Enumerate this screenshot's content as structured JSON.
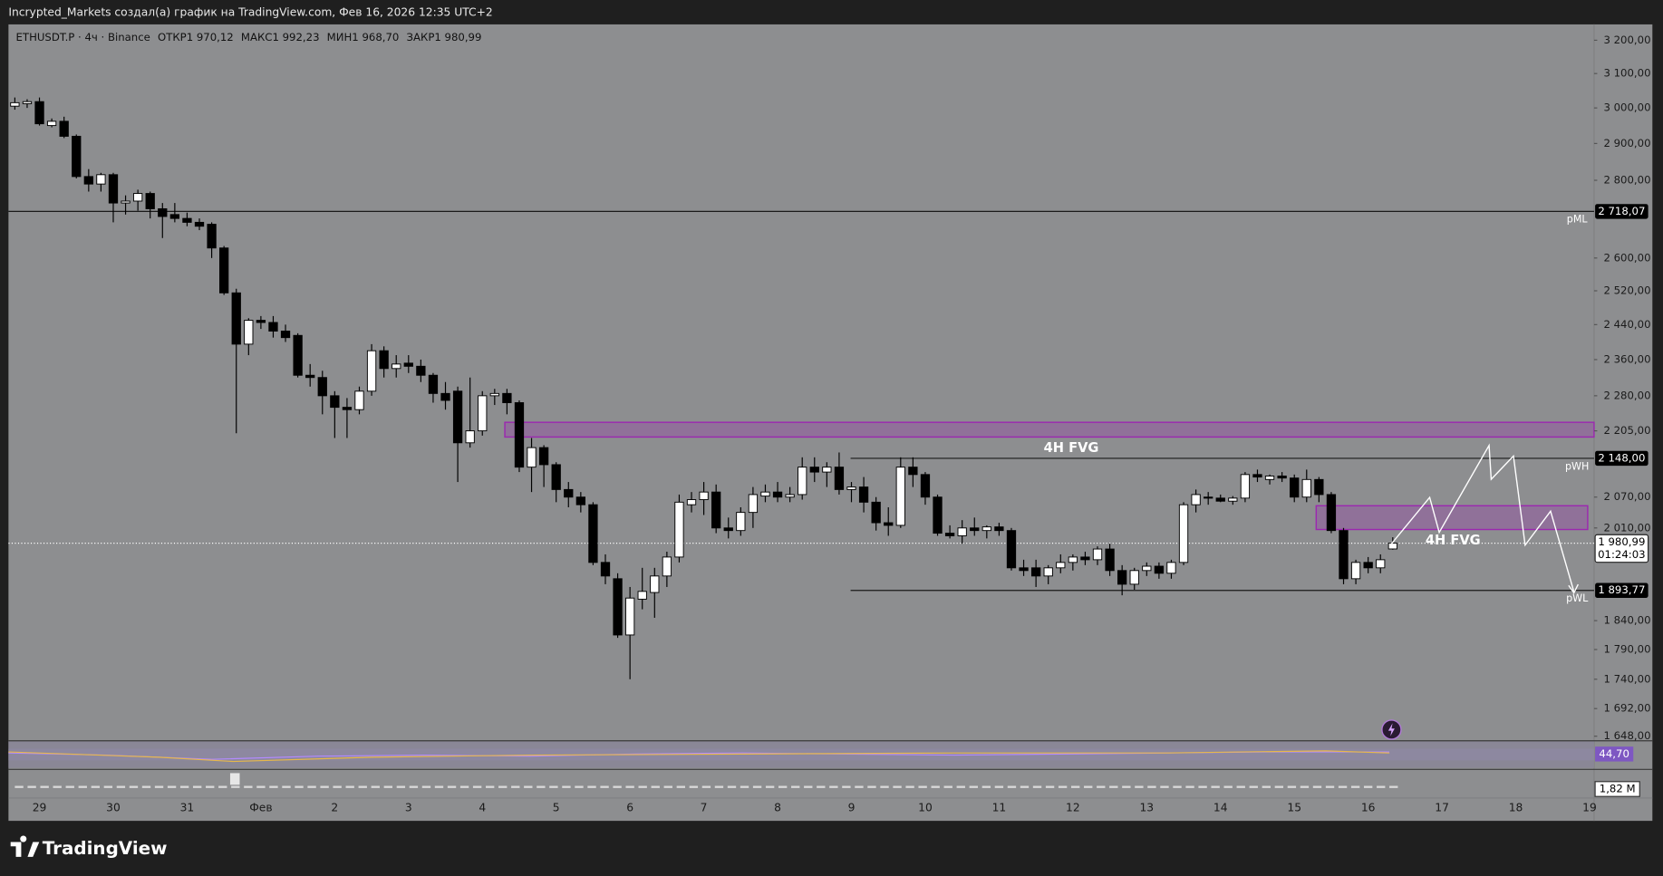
{
  "header": {
    "title": "Incrypted_Markets создал(а) график на TradingView.com, Фев 16, 2026 12:35 UTC+2"
  },
  "footer": {
    "brand": "TradingView"
  },
  "chart_data": {
    "type": "candlestick",
    "legend": {
      "symbol": "ETHUSDT.P · 4ч · Binance",
      "fields": [
        {
          "name": "ОТКР",
          "label": "1 970,12"
        },
        {
          "name": "МАКС",
          "label": "1 992,23"
        },
        {
          "name": "МИН",
          "label": "1 968,70"
        },
        {
          "name": "ЗАКР",
          "label": "1 980,99"
        }
      ]
    },
    "log_scale": true,
    "ylim": [
      1640,
      3252
    ],
    "yticks": [
      {
        "value": 3200,
        "label": "3 200,00"
      },
      {
        "value": 3100,
        "label": "3 100,00"
      },
      {
        "value": 3000,
        "label": "3 000,00"
      },
      {
        "value": 2900,
        "label": "2 900,00"
      },
      {
        "value": 2800,
        "label": "2 800,00"
      },
      {
        "value": 2600,
        "label": "2 600,00"
      },
      {
        "value": 2520,
        "label": "2 520,00"
      },
      {
        "value": 2440,
        "label": "2 440,00"
      },
      {
        "value": 2360,
        "label": "2 360,00"
      },
      {
        "value": 2280,
        "label": "2 280,00"
      },
      {
        "value": 2205,
        "label": "2 205,00"
      },
      {
        "value": 2070,
        "label": "2 070,00"
      },
      {
        "value": 2010,
        "label": "2 010,00"
      },
      {
        "value": 1840,
        "label": "1 840,00"
      },
      {
        "value": 1790,
        "label": "1 790,00"
      },
      {
        "value": 1740,
        "label": "1 740,00"
      },
      {
        "value": 1692,
        "label": "1 692,00"
      },
      {
        "value": 1648,
        "label": "1 648,00"
      }
    ],
    "categories": [
      "29",
      "30",
      "31",
      "Фев",
      "2",
      "3",
      "4",
      "5",
      "6",
      "7",
      "8",
      "9",
      "10",
      "11",
      "12",
      "13",
      "14",
      "15",
      "16",
      "17",
      "18",
      "19"
    ],
    "up_color": "#ffffff",
    "down_color": "#000000",
    "candles": [
      [
        3005,
        3030,
        2995,
        3015
      ],
      [
        3012,
        3025,
        3000,
        3018
      ],
      [
        3018,
        3030,
        2950,
        2955
      ],
      [
        2950,
        2970,
        2945,
        2962
      ],
      [
        2962,
        2975,
        2915,
        2920
      ],
      [
        2920,
        2925,
        2805,
        2810
      ],
      [
        2810,
        2830,
        2770,
        2790
      ],
      [
        2790,
        2820,
        2770,
        2815
      ],
      [
        2815,
        2820,
        2690,
        2740
      ],
      [
        2740,
        2760,
        2710,
        2745
      ],
      [
        2745,
        2775,
        2720,
        2765
      ],
      [
        2765,
        2770,
        2700,
        2725
      ],
      [
        2725,
        2740,
        2650,
        2705
      ],
      [
        2710,
        2740,
        2690,
        2700
      ],
      [
        2700,
        2715,
        2680,
        2690
      ],
      [
        2690,
        2700,
        2670,
        2680
      ],
      [
        2685,
        2690,
        2600,
        2625
      ],
      [
        2625,
        2630,
        2510,
        2515
      ],
      [
        2515,
        2525,
        2200,
        2395
      ],
      [
        2395,
        2455,
        2370,
        2450
      ],
      [
        2450,
        2460,
        2430,
        2445
      ],
      [
        2445,
        2460,
        2410,
        2425
      ],
      [
        2425,
        2440,
        2400,
        2410
      ],
      [
        2415,
        2420,
        2320,
        2325
      ],
      [
        2325,
        2350,
        2300,
        2320
      ],
      [
        2320,
        2335,
        2240,
        2280
      ],
      [
        2280,
        2290,
        2190,
        2255
      ],
      [
        2255,
        2275,
        2190,
        2250
      ],
      [
        2250,
        2300,
        2240,
        2290
      ],
      [
        2290,
        2395,
        2280,
        2380
      ],
      [
        2380,
        2390,
        2320,
        2340
      ],
      [
        2340,
        2370,
        2320,
        2350
      ],
      [
        2352,
        2370,
        2330,
        2345
      ],
      [
        2345,
        2360,
        2310,
        2325
      ],
      [
        2325,
        2330,
        2265,
        2285
      ],
      [
        2285,
        2310,
        2250,
        2270
      ],
      [
        2290,
        2300,
        2100,
        2180
      ],
      [
        2180,
        2320,
        2170,
        2205
      ],
      [
        2205,
        2290,
        2195,
        2280
      ],
      [
        2280,
        2295,
        2260,
        2285
      ],
      [
        2285,
        2295,
        2240,
        2265
      ],
      [
        2265,
        2270,
        2120,
        2130
      ],
      [
        2130,
        2190,
        2080,
        2170
      ],
      [
        2170,
        2175,
        2090,
        2135
      ],
      [
        2135,
        2140,
        2060,
        2085
      ],
      [
        2085,
        2100,
        2050,
        2070
      ],
      [
        2070,
        2080,
        2040,
        2055
      ],
      [
        2055,
        2060,
        1940,
        1945
      ],
      [
        1945,
        1960,
        1905,
        1920
      ],
      [
        1915,
        1925,
        1810,
        1815
      ],
      [
        1815,
        1900,
        1740,
        1880
      ],
      [
        1878,
        1935,
        1860,
        1892
      ],
      [
        1890,
        1935,
        1845,
        1920
      ],
      [
        1920,
        1965,
        1900,
        1955
      ],
      [
        1955,
        2075,
        1945,
        2060
      ],
      [
        2055,
        2080,
        2040,
        2065
      ],
      [
        2065,
        2100,
        2035,
        2080
      ],
      [
        2080,
        2095,
        2000,
        2010
      ],
      [
        2010,
        2030,
        1990,
        2005
      ],
      [
        2005,
        2050,
        1995,
        2040
      ],
      [
        2040,
        2090,
        2010,
        2075
      ],
      [
        2072,
        2095,
        2060,
        2080
      ],
      [
        2080,
        2100,
        2060,
        2070
      ],
      [
        2070,
        2090,
        2060,
        2075
      ],
      [
        2075,
        2150,
        2065,
        2130
      ],
      [
        2130,
        2150,
        2100,
        2120
      ],
      [
        2120,
        2140,
        2090,
        2130
      ],
      [
        2130,
        2160,
        2075,
        2085
      ],
      [
        2085,
        2100,
        2060,
        2090
      ],
      [
        2090,
        2110,
        2040,
        2060
      ],
      [
        2060,
        2070,
        2005,
        2020
      ],
      [
        2020,
        2050,
        1995,
        2015
      ],
      [
        2015,
        2150,
        2010,
        2130
      ],
      [
        2130,
        2150,
        2090,
        2115
      ],
      [
        2115,
        2120,
        2055,
        2070
      ],
      [
        2070,
        2075,
        1995,
        2000
      ],
      [
        2000,
        2015,
        1990,
        1995
      ],
      [
        1995,
        2025,
        1980,
        2010
      ],
      [
        2010,
        2030,
        1995,
        2005
      ],
      [
        2005,
        2015,
        1990,
        2012
      ],
      [
        2012,
        2020,
        1995,
        2005
      ],
      [
        2005,
        2010,
        1930,
        1935
      ],
      [
        1935,
        1950,
        1920,
        1930
      ],
      [
        1935,
        1950,
        1900,
        1920
      ],
      [
        1920,
        1940,
        1905,
        1935
      ],
      [
        1935,
        1960,
        1925,
        1945
      ],
      [
        1945,
        1960,
        1930,
        1955
      ],
      [
        1955,
        1965,
        1940,
        1950
      ],
      [
        1950,
        1975,
        1940,
        1970
      ],
      [
        1970,
        1980,
        1920,
        1930
      ],
      [
        1930,
        1940,
        1885,
        1905
      ],
      [
        1905,
        1935,
        1895,
        1930
      ],
      [
        1930,
        1945,
        1920,
        1938
      ],
      [
        1938,
        1945,
        1915,
        1925
      ],
      [
        1925,
        1950,
        1915,
        1945
      ],
      [
        1945,
        2060,
        1940,
        2055
      ],
      [
        2055,
        2085,
        2040,
        2075
      ],
      [
        2070,
        2080,
        2055,
        2068
      ],
      [
        2068,
        2075,
        2060,
        2062
      ],
      [
        2062,
        2072,
        2055,
        2068
      ],
      [
        2068,
        2120,
        2060,
        2115
      ],
      [
        2115,
        2125,
        2100,
        2110
      ],
      [
        2105,
        2115,
        2095,
        2112
      ],
      [
        2112,
        2120,
        2100,
        2108
      ],
      [
        2108,
        2115,
        2060,
        2070
      ],
      [
        2070,
        2125,
        2060,
        2105
      ],
      [
        2105,
        2110,
        2060,
        2075
      ],
      [
        2075,
        2080,
        2000,
        2005
      ],
      [
        2005,
        2010,
        1905,
        1915
      ],
      [
        1915,
        1950,
        1905,
        1945
      ],
      [
        1945,
        1955,
        1925,
        1935
      ],
      [
        1935,
        1960,
        1925,
        1950
      ],
      [
        1970.12,
        1992.23,
        1968.7,
        1980.99
      ]
    ],
    "levels": [
      {
        "value": 2718.07,
        "label": "2 718,07",
        "name": "pML"
      },
      {
        "value": 2148,
        "label": "2 148,00",
        "name": "pWH"
      },
      {
        "value": 1893.77,
        "label": "1 893,77",
        "name": "pWL"
      }
    ],
    "current_price": {
      "value": 1980.99,
      "label": "1 980,99",
      "countdown": "01:24:03"
    },
    "zones": [
      {
        "top": 2223,
        "bottom": 2192,
        "label": "4H FVG"
      },
      {
        "top": 2053,
        "bottom": 2007,
        "label": "4H FVG"
      }
    ],
    "oscillator_label": "44,70",
    "volume_label": "1,82 M"
  }
}
